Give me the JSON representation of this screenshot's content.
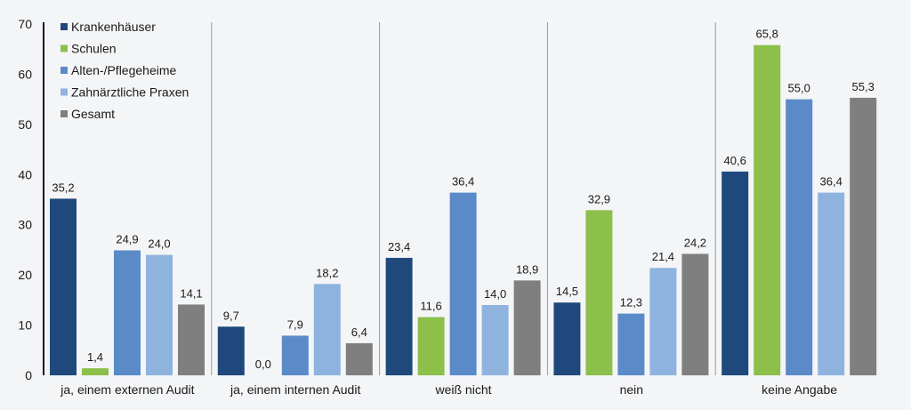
{
  "chart_data": {
    "type": "bar",
    "title": "",
    "xlabel": "",
    "ylabel": "",
    "ylim": [
      0,
      70
    ],
    "yticks": [
      "0",
      "10",
      "20",
      "30",
      "40",
      "50",
      "60",
      "70"
    ],
    "grid": false,
    "legend_position": "top-left",
    "categories": [
      "ja, einem externen Audit",
      "ja, einem internen Audit",
      "weiß nicht",
      "nein",
      "keine Angabe"
    ],
    "series": [
      {
        "name": "Krankenhäuser",
        "color": "#1f497d",
        "values": [
          35.2,
          9.7,
          23.4,
          14.5,
          40.6
        ],
        "labels": [
          "35,2",
          "9,7",
          "23,4",
          "14,5",
          "40,6"
        ]
      },
      {
        "name": "Schulen",
        "color": "#8cc04b",
        "values": [
          1.4,
          0.0,
          11.6,
          32.9,
          65.8
        ],
        "labels": [
          "1,4",
          "0,0",
          "11,6",
          "32,9",
          "65,8"
        ]
      },
      {
        "name": "Alten-/Pflegeheime",
        "color": "#5a8bc8",
        "values": [
          24.9,
          7.9,
          36.4,
          12.3,
          55.0
        ],
        "labels": [
          "24,9",
          "7,9",
          "36,4",
          "12,3",
          "55,0"
        ]
      },
      {
        "name": "Zahnärztliche Praxen",
        "color": "#8fb3df",
        "values": [
          24.0,
          18.2,
          14.0,
          21.4,
          36.4
        ],
        "labels": [
          "24,0",
          "18,2",
          "14,0",
          "21,4",
          "36,4"
        ]
      },
      {
        "name": "Gesamt",
        "color": "#7f7f7f",
        "values": [
          14.1,
          6.4,
          18.9,
          24.2,
          55.3
        ],
        "labels": [
          "14,1",
          "6,4",
          "18,9",
          "24,2",
          "55,3"
        ]
      }
    ]
  }
}
